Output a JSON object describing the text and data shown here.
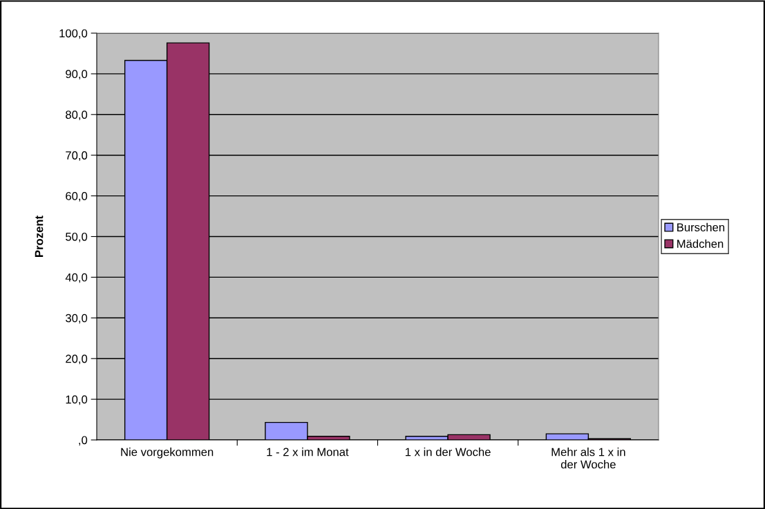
{
  "chart_data": {
    "type": "bar",
    "ylabel": "Prozent",
    "categories": [
      "Nie vorgekommen",
      "1 - 2 x im Monat",
      "1 x in der Woche",
      "Mehr als 1 x in\nder Woche"
    ],
    "series": [
      {
        "name": "Burschen",
        "color": "#9999ff",
        "values": [
          93.3,
          4.3,
          0.9,
          1.5
        ]
      },
      {
        "name": "Mädchen",
        "color": "#993366",
        "values": [
          97.6,
          0.9,
          1.3,
          0.3
        ]
      }
    ],
    "ylim": [
      0,
      100
    ],
    "yticks": [
      {
        "value": 0,
        "label": ",0"
      },
      {
        "value": 10,
        "label": "10,0"
      },
      {
        "value": 20,
        "label": "20,0"
      },
      {
        "value": 30,
        "label": "30,0"
      },
      {
        "value": 40,
        "label": "40,0"
      },
      {
        "value": 50,
        "label": "50,0"
      },
      {
        "value": 60,
        "label": "60,0"
      },
      {
        "value": 70,
        "label": "70,0"
      },
      {
        "value": 80,
        "label": "80,0"
      },
      {
        "value": 90,
        "label": "90,0"
      },
      {
        "value": 100,
        "label": "100,0"
      }
    ],
    "grid": "y",
    "legend": "right"
  }
}
